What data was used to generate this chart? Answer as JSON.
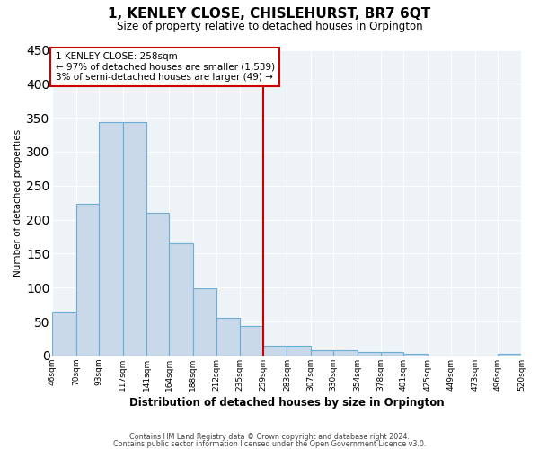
{
  "title": "1, KENLEY CLOSE, CHISLEHURST, BR7 6QT",
  "subtitle": "Size of property relative to detached houses in Orpington",
  "xlabel": "Distribution of detached houses by size in Orpington",
  "ylabel": "Number of detached properties",
  "bin_edges": [
    46,
    70,
    93,
    117,
    141,
    164,
    188,
    212,
    235,
    259,
    283,
    307,
    330,
    354,
    378,
    401,
    425,
    449,
    473,
    496,
    520
  ],
  "bar_heights": [
    65,
    223,
    343,
    344,
    210,
    165,
    99,
    56,
    43,
    15,
    15,
    8,
    8,
    5,
    5,
    3,
    0,
    0,
    0,
    3
  ],
  "bar_color": "#c9d9ea",
  "bar_edge_color": "#6baed6",
  "vline_x": 259,
  "vline_color": "#cc0000",
  "ylim": [
    0,
    450
  ],
  "yticks": [
    0,
    50,
    100,
    150,
    200,
    250,
    300,
    350,
    400,
    450
  ],
  "annotation_text": "1 KENLEY CLOSE: 258sqm\n← 97% of detached houses are smaller (1,539)\n3% of semi-detached houses are larger (49) →",
  "annotation_box_facecolor": "#ffffff",
  "annotation_box_edgecolor": "#cc0000",
  "footer_line1": "Contains HM Land Registry data © Crown copyright and database right 2024.",
  "footer_line2": "Contains public sector information licensed under the Open Government Licence v3.0.",
  "background_color": "#ffffff",
  "plot_background_color": "#eef3f8",
  "grid_color": "#ffffff",
  "tick_labels": [
    "46sqm",
    "70sqm",
    "93sqm",
    "117sqm",
    "141sqm",
    "164sqm",
    "188sqm",
    "212sqm",
    "235sqm",
    "259sqm",
    "283sqm",
    "307sqm",
    "330sqm",
    "354sqm",
    "378sqm",
    "401sqm",
    "425sqm",
    "449sqm",
    "473sqm",
    "496sqm",
    "520sqm"
  ]
}
